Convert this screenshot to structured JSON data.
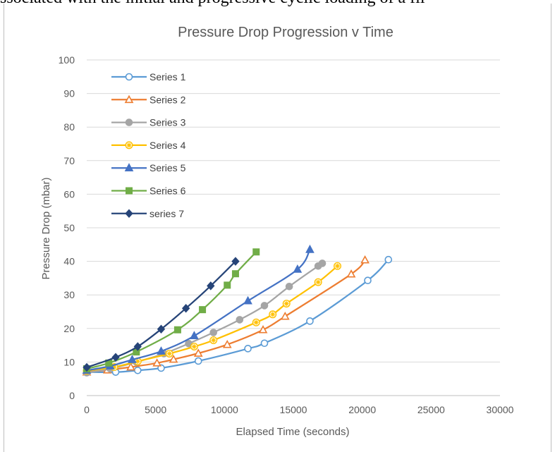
{
  "caption": "ssociated with the initial and progressive cyclic loading of a fil",
  "chart_data": {
    "type": "line",
    "title": "Pressure Drop Progression v Time",
    "xlabel": "Elapsed Time (seconds)",
    "ylabel": "Pressure Drop (mbar)",
    "xlim": [
      0,
      30000
    ],
    "ylim": [
      0,
      100
    ],
    "xticks": [
      0,
      5000,
      10000,
      15000,
      20000,
      25000,
      30000
    ],
    "yticks": [
      0,
      10,
      20,
      30,
      40,
      50,
      60,
      70,
      80,
      90,
      100
    ],
    "grid": "horizontal",
    "legend_position": "top-left",
    "series": [
      {
        "name": "Series 1",
        "color": "#5b9bd5",
        "marker": "circle-open",
        "x": [
          0,
          2100,
          3700,
          5400,
          8100,
          11700,
          12900,
          16200,
          20400,
          21900
        ],
        "y": [
          7.0,
          7.0,
          7.5,
          8.2,
          10.3,
          14.0,
          15.6,
          22.2,
          34.3,
          40.5
        ]
      },
      {
        "name": "Series 2",
        "color": "#ed7d31",
        "marker": "triangle-open",
        "x": [
          0,
          1500,
          3200,
          5100,
          6300,
          8100,
          10200,
          12800,
          14400,
          19200,
          20200
        ],
        "y": [
          7.0,
          7.6,
          8.5,
          9.7,
          10.8,
          12.6,
          15.2,
          19.6,
          23.6,
          36.2,
          40.4
        ]
      },
      {
        "name": "Series 3",
        "color": "#a5a5a5",
        "marker": "circle",
        "x": [
          0,
          1700,
          3600,
          5600,
          7400,
          9200,
          11100,
          12900,
          14700,
          16800,
          17100
        ],
        "y": [
          6.8,
          8.0,
          10.0,
          12.5,
          15.5,
          18.8,
          22.6,
          26.8,
          32.5,
          38.6,
          39.4
        ]
      },
      {
        "name": "Series 4",
        "color": "#ffc000",
        "marker": "star",
        "x": [
          0,
          2000,
          3700,
          6000,
          7800,
          9200,
          12300,
          13500,
          14500,
          16800,
          18200
        ],
        "y": [
          7.4,
          8.5,
          10.2,
          12.5,
          14.6,
          16.5,
          21.8,
          24.2,
          27.4,
          33.8,
          38.6
        ]
      },
      {
        "name": "Series 5",
        "color": "#4472c4",
        "marker": "triangle",
        "x": [
          0,
          1700,
          3300,
          5400,
          7800,
          11700,
          15300,
          16200
        ],
        "y": [
          7.5,
          8.8,
          10.7,
          13.2,
          17.8,
          28.2,
          37.6,
          43.5
        ]
      },
      {
        "name": "Series 6",
        "color": "#70ad47",
        "marker": "square",
        "x": [
          0,
          1600,
          3600,
          6600,
          8400,
          10200,
          10800,
          12300
        ],
        "y": [
          8.0,
          9.7,
          13.0,
          19.6,
          25.6,
          32.9,
          36.3,
          42.8
        ]
      },
      {
        "name": "series 7",
        "color": "#264478",
        "marker": "diamond",
        "x": [
          0,
          2100,
          3700,
          5400,
          7200,
          9000,
          10800
        ],
        "y": [
          8.4,
          11.4,
          14.6,
          19.8,
          26.0,
          32.7,
          40.0
        ]
      }
    ]
  }
}
